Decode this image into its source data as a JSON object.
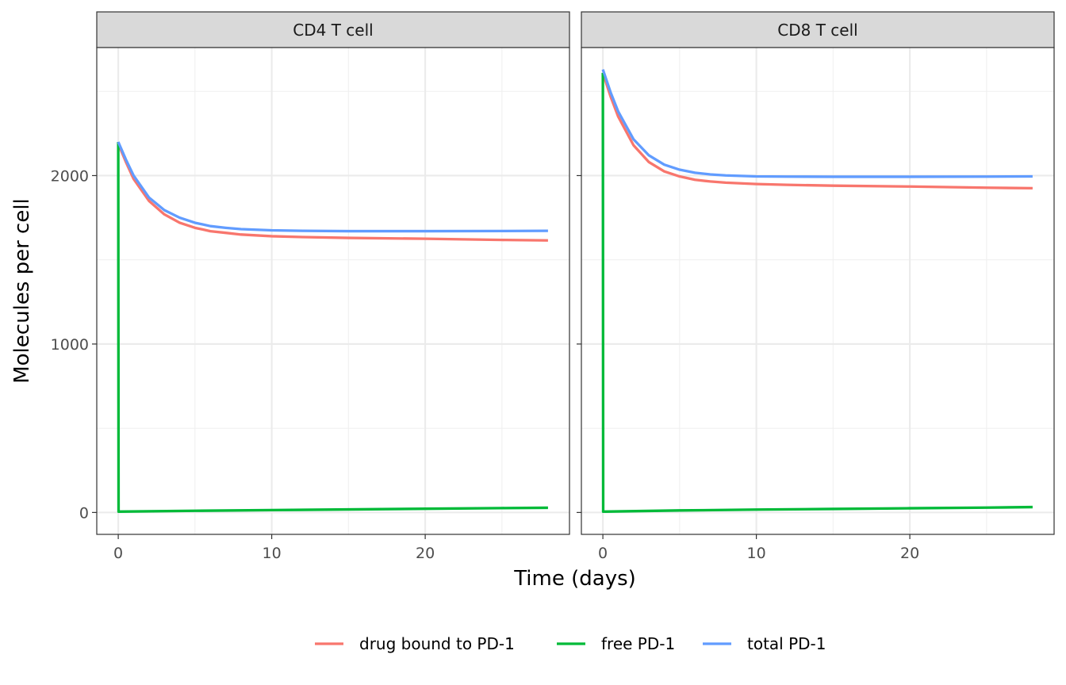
{
  "chart_data": {
    "type": "line",
    "xlabel": "Time (days)",
    "ylabel": "Molecules per cell",
    "xlim": [
      -1.4,
      29.4
    ],
    "ylim": [
      -130,
      2760
    ],
    "x_ticks": [
      0,
      10,
      20
    ],
    "y_ticks": [
      0,
      1000,
      2000
    ],
    "grid": true,
    "legend_position": "bottom",
    "series_names": [
      "drug bound to PD-1",
      "free PD-1",
      "total PD-1"
    ],
    "colors": {
      "drug bound to PD-1": "#F8766D",
      "free PD-1": "#00BA38",
      "total PD-1": "#619CFF"
    },
    "panels": [
      {
        "title": "CD4 T cell",
        "series": [
          {
            "name": "drug bound to PD-1",
            "x": [
              0,
              0.5,
              1,
              2,
              3,
              4,
              5,
              6,
              7,
              8,
              10,
              12,
              15,
              20,
              25,
              28
            ],
            "y": [
              2190,
              2080,
              1980,
              1850,
              1770,
              1720,
              1690,
              1670,
              1660,
              1650,
              1640,
              1635,
              1630,
              1625,
              1618,
              1615
            ]
          },
          {
            "name": "free PD-1",
            "x": [
              0,
              0.02,
              5,
              10,
              15,
              20,
              25,
              28
            ],
            "y": [
              2200,
              5,
              10,
              14,
              18,
              22,
              26,
              28
            ]
          },
          {
            "name": "total PD-1",
            "x": [
              0,
              0.5,
              1,
              2,
              3,
              4,
              5,
              6,
              7,
              8,
              10,
              12,
              15,
              20,
              25,
              28
            ],
            "y": [
              2200,
              2095,
              2000,
              1870,
              1795,
              1750,
              1720,
              1700,
              1690,
              1682,
              1675,
              1672,
              1670,
              1670,
              1671,
              1672
            ]
          }
        ]
      },
      {
        "title": "CD8 T cell",
        "series": [
          {
            "name": "drug bound to PD-1",
            "x": [
              0,
              0.5,
              1,
              2,
              3,
              4,
              5,
              6,
              7,
              8,
              10,
              12,
              15,
              20,
              25,
              28
            ],
            "y": [
              2610,
              2470,
              2350,
              2180,
              2080,
              2025,
              1995,
              1975,
              1965,
              1958,
              1950,
              1945,
              1940,
              1935,
              1928,
              1925
            ]
          },
          {
            "name": "free PD-1",
            "x": [
              0,
              0.02,
              5,
              10,
              15,
              20,
              25,
              28
            ],
            "y": [
              2610,
              5,
              12,
              17,
              21,
              25,
              29,
              32
            ]
          },
          {
            "name": "total PD-1",
            "x": [
              0,
              0.5,
              1,
              2,
              3,
              4,
              5,
              6,
              7,
              8,
              10,
              12,
              15,
              20,
              25,
              28
            ],
            "y": [
              2630,
              2495,
              2380,
              2215,
              2120,
              2065,
              2035,
              2017,
              2007,
              2001,
              1995,
              1994,
              1993,
              1993,
              1994,
              1995
            ]
          }
        ]
      }
    ]
  }
}
